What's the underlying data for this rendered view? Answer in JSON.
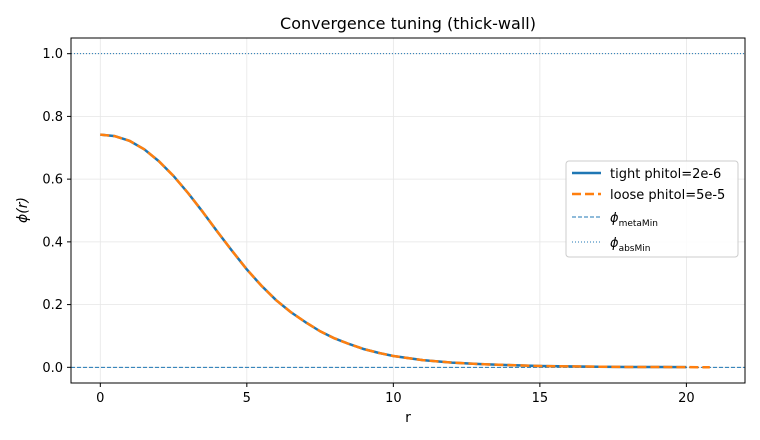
{
  "chart_data": {
    "type": "line",
    "title": "Convergence tuning (thick-wall)",
    "xlabel": "r",
    "ylabel": "ϕ(r)",
    "xlim": [
      -1,
      22
    ],
    "ylim": [
      -0.05,
      1.05
    ],
    "grid": true,
    "legend_position": "center-right",
    "xticks": [
      0,
      5,
      10,
      15,
      20
    ],
    "yticks": [
      0.0,
      0.2,
      0.4,
      0.6,
      0.8,
      1.0
    ],
    "series": [
      {
        "name": "tight phitol=2e-6",
        "style": "solid",
        "color": "#1f77b4",
        "x": [
          0,
          0.5,
          1,
          1.5,
          2,
          2.5,
          3,
          3.5,
          4,
          4.5,
          5,
          5.5,
          6,
          6.5,
          7,
          7.5,
          8,
          8.5,
          9,
          9.5,
          10,
          11,
          12,
          13,
          14,
          15,
          16,
          17,
          18,
          19,
          20
        ],
        "y": [
          0.742,
          0.737,
          0.722,
          0.695,
          0.657,
          0.61,
          0.555,
          0.495,
          0.432,
          0.371,
          0.312,
          0.26,
          0.214,
          0.176,
          0.144,
          0.115,
          0.092,
          0.074,
          0.058,
          0.046,
          0.036,
          0.023,
          0.015,
          0.01,
          0.007,
          0.004,
          0.003,
          0.002,
          0.001,
          0.001,
          0.0005
        ]
      },
      {
        "name": "loose phitol=5e-5",
        "style": "dashed",
        "color": "#ff7f0e",
        "x": [
          0,
          0.5,
          1,
          1.5,
          2,
          2.5,
          3,
          3.5,
          4,
          4.5,
          5,
          5.5,
          6,
          6.5,
          7,
          7.5,
          8,
          8.5,
          9,
          9.5,
          10,
          11,
          12,
          13,
          14,
          15,
          16,
          17,
          18,
          19,
          20,
          20.8
        ],
        "y": [
          0.742,
          0.737,
          0.722,
          0.695,
          0.657,
          0.61,
          0.555,
          0.495,
          0.432,
          0.371,
          0.312,
          0.26,
          0.214,
          0.176,
          0.144,
          0.115,
          0.092,
          0.074,
          0.058,
          0.046,
          0.036,
          0.023,
          0.015,
          0.01,
          0.007,
          0.004,
          0.003,
          0.002,
          0.001,
          0.001,
          0.0005,
          0.0003
        ]
      }
    ],
    "hlines": [
      {
        "name": "ϕmetaMin",
        "sub": "metaMin",
        "y": 0.0,
        "style": "dashed",
        "color": "#1f77b4"
      },
      {
        "name": "ϕabsMin",
        "sub": "absMin",
        "y": 1.0,
        "style": "dotted",
        "color": "#1f77b4"
      }
    ]
  }
}
